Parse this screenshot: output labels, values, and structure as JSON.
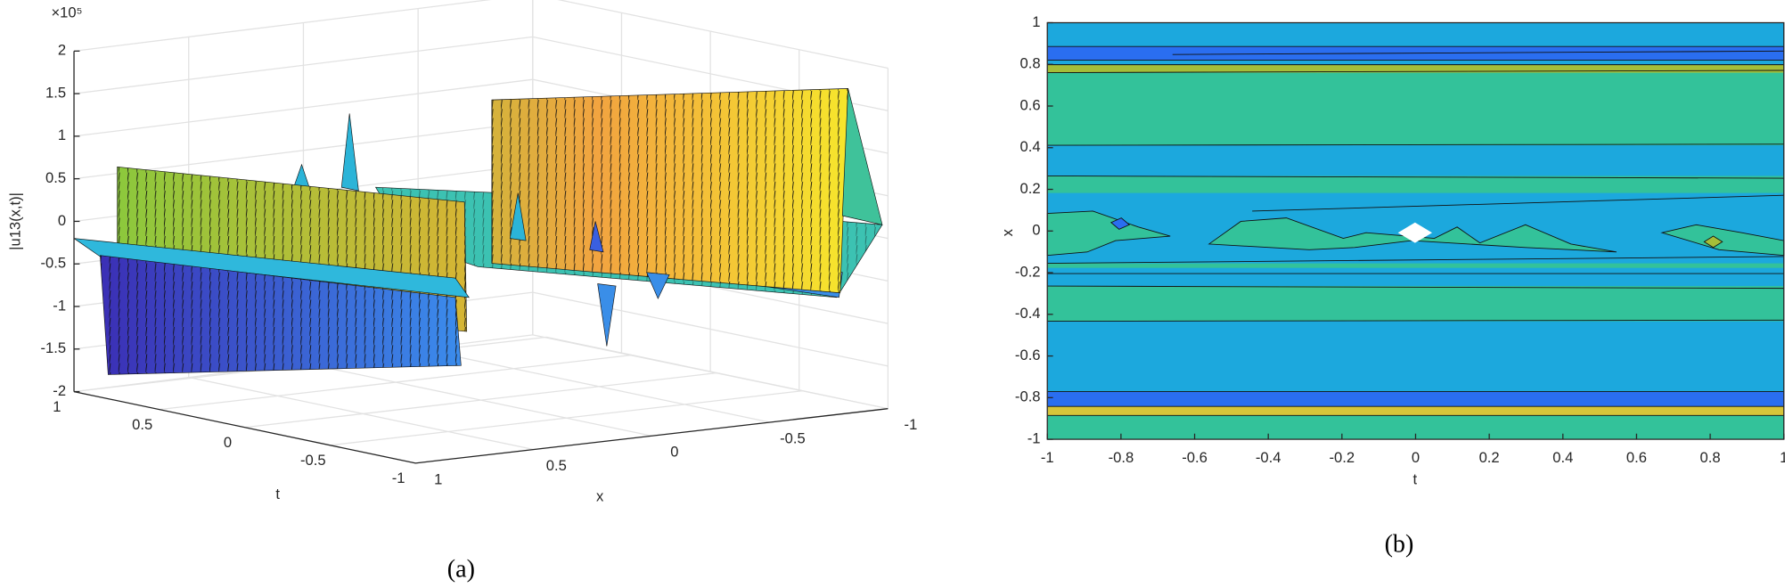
{
  "chart_data": [
    {
      "type": "surface",
      "caption": "(a)",
      "xlabel": "x",
      "ylabel": "t",
      "zlabel": "|u13(x,t)|",
      "zscale": "×10⁵",
      "xlim": [
        -1,
        1
      ],
      "xticks": [
        1,
        0.5,
        0,
        -0.5,
        -1
      ],
      "ylim": [
        -1,
        1
      ],
      "yticks": [
        1,
        0.5,
        0,
        -0.5,
        -1
      ],
      "zlim": [
        -2,
        2
      ],
      "zticks": [
        -2,
        -1.5,
        -1,
        -0.5,
        0,
        0.5,
        1,
        1.5,
        2
      ],
      "grid": true
    },
    {
      "type": "contour",
      "caption": "(b)",
      "xlabel": "t",
      "ylabel": "x",
      "xlim": [
        -1,
        1
      ],
      "xticks": [
        -1,
        -0.8,
        -0.6,
        -0.4,
        -0.2,
        0,
        0.2,
        0.4,
        0.6,
        0.8,
        1
      ],
      "ylim": [
        -1,
        1
      ],
      "yticks": [
        -1,
        -0.8,
        -0.6,
        -0.4,
        -0.2,
        0,
        0.2,
        0.4,
        0.6,
        0.8,
        1
      ]
    }
  ]
}
